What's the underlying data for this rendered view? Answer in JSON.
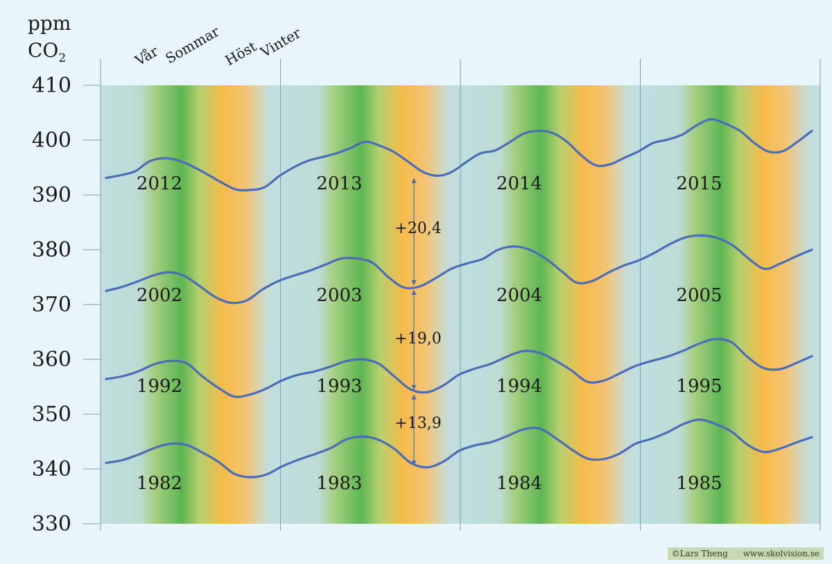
{
  "chart_data": {
    "type": "line",
    "ylabel_line1": "ppm",
    "ylabel_line2": "CO",
    "ylabel_subscript": "2",
    "ylim": [
      330,
      410
    ],
    "yticks": [
      410,
      400,
      390,
      380,
      370,
      360,
      350,
      340,
      330
    ],
    "season_labels": [
      "Vår",
      "Sommar",
      "Höst",
      "Vinter"
    ],
    "columns": 4,
    "series": [
      {
        "year_labels": [
          "2012",
          "2013",
          "2014",
          "2015"
        ],
        "values": [
          393.1,
          393.6,
          394.3,
          396.1,
          396.7,
          396.3,
          395.2,
          393.8,
          392.3,
          391.0,
          390.9,
          391.4,
          393.4,
          395.0,
          396.2,
          396.9,
          397.6,
          398.6,
          399.7,
          399.0,
          397.8,
          396.0,
          394.2,
          393.5,
          394.2,
          396.0,
          397.6,
          398.1,
          399.6,
          401.2,
          401.7,
          401.3,
          399.7,
          397.2,
          395.4,
          395.6,
          396.8,
          398.0,
          399.5,
          400.1,
          401.0,
          402.7,
          403.8,
          403.0,
          401.7,
          399.5,
          397.9,
          398.0,
          399.7,
          401.7
        ]
      },
      {
        "year_labels": [
          "2002",
          "2003",
          "2004",
          "2005"
        ],
        "values": [
          372.5,
          373.2,
          374.2,
          375.3,
          375.9,
          375.2,
          373.3,
          371.3,
          370.3,
          370.8,
          372.8,
          374.3,
          375.3,
          376.2,
          377.3,
          378.4,
          378.4,
          377.6,
          375.0,
          373.1,
          373.3,
          374.8,
          376.5,
          377.5,
          378.3,
          380.0,
          380.6,
          380.0,
          378.4,
          376.2,
          374.0,
          374.3,
          375.8,
          377.1,
          378.1,
          379.5,
          381.1,
          382.3,
          382.6,
          382.1,
          380.7,
          378.3,
          376.5,
          377.5,
          378.8,
          380.0
        ]
      },
      {
        "year_labels": [
          "1992",
          "1993",
          "1994",
          "1995"
        ],
        "values": [
          356.4,
          356.9,
          357.8,
          359.1,
          359.7,
          359.3,
          356.9,
          354.8,
          353.2,
          353.6,
          354.7,
          356.2,
          357.2,
          357.8,
          358.7,
          359.7,
          360.0,
          359.2,
          356.8,
          354.5,
          354.0,
          355.2,
          357.2,
          358.3,
          359.2,
          360.5,
          361.5,
          361.2,
          359.8,
          358.0,
          355.9,
          356.1,
          357.4,
          358.8,
          359.7,
          360.5,
          361.6,
          362.9,
          363.7,
          363.1,
          360.4,
          358.4,
          358.2,
          359.3,
          360.6
        ]
      },
      {
        "year_labels": [
          "1982",
          "1983",
          "1984",
          "1985"
        ],
        "values": [
          341.1,
          341.6,
          342.6,
          343.8,
          344.6,
          344.4,
          343.0,
          341.3,
          339.1,
          338.5,
          339.0,
          340.5,
          341.7,
          342.7,
          343.8,
          345.4,
          345.9,
          345.3,
          343.6,
          341.1,
          340.3,
          341.3,
          343.3,
          344.3,
          344.9,
          346.0,
          347.2,
          347.4,
          345.7,
          343.6,
          341.9,
          341.8,
          342.8,
          344.6,
          345.5,
          346.7,
          348.2,
          349.0,
          348.2,
          346.8,
          344.4,
          343.1,
          343.7,
          344.8,
          345.8
        ]
      }
    ],
    "differences": [
      "+20,4",
      "+19,0",
      "+13,9"
    ]
  },
  "credit": {
    "author": "©Lars Theng",
    "website": "www.skolvision.se"
  },
  "colors": {
    "line": "#4a6db8",
    "season_spring": "#a6cf7f",
    "season_summer": "#5db653",
    "season_autumn": "#f5bb4a",
    "season_winter": "#bfdfe2",
    "axis": "#8a9a9f"
  }
}
